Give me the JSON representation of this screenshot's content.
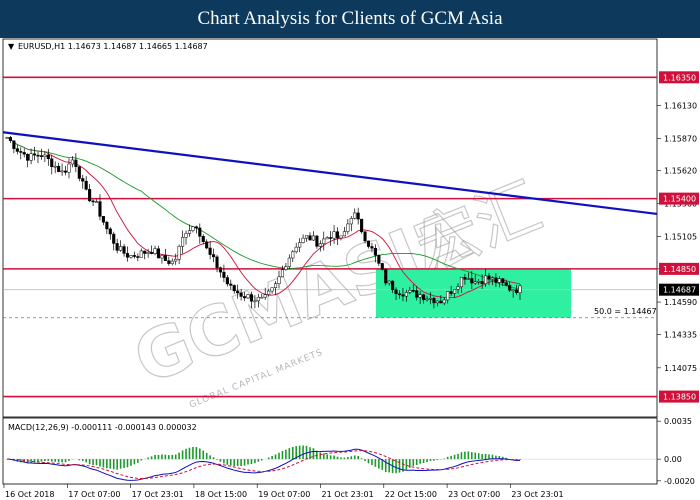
{
  "header": {
    "title": "Chart Analysis for Clients of GCM Asia"
  },
  "watermark": {
    "text": "GCMASIA",
    "cjk": "宏汇",
    "sub": "GLOBAL CAPITAL MARKETS"
  },
  "chart_data": {
    "type": "candlestick",
    "symbol_info": "EURUSD,H1  1.14673 1.14687 1.14665 1.14687",
    "price_range": [
      1.1369,
      1.1665
    ],
    "price_ticks": [
      "1.16130",
      "1.15870",
      "1.15620",
      "1.15360",
      "1.15105",
      "1.14850",
      "1.14590",
      "1.14335",
      "1.14075"
    ],
    "levels": [
      {
        "label": "1.16350",
        "value": 1.1635,
        "color": "#d0103a"
      },
      {
        "label": "1.15400",
        "value": 1.154,
        "color": "#d0103a"
      },
      {
        "label": "1.14850",
        "value": 1.1485,
        "color": "#d0103a"
      },
      {
        "label": "1.13850",
        "value": 1.1385,
        "color": "#d0103a"
      }
    ],
    "current_price": {
      "label": "1.14687",
      "value": 1.14687
    },
    "fib_label": "50.0 = 1.14467",
    "fib_value": 1.14467,
    "trendline": {
      "from": 1.1592,
      "to": 1.1528,
      "color": "#1010c0"
    },
    "zone": {
      "low": 1.14467,
      "high": 1.1485,
      "color": "#2ef0a0"
    },
    "x_labels": [
      "16 Oct 2018",
      "17 Oct 07:00",
      "17 Oct 23:01",
      "18 Oct 15:00",
      "19 Oct 07:00",
      "21 Oct 23:01",
      "22 Oct 15:00",
      "23 Oct 07:00",
      "23 Oct 23:01"
    ],
    "close_path": [
      1.1588,
      1.1578,
      1.1572,
      1.1575,
      1.1568,
      1.156,
      1.1572,
      1.1545,
      1.1535,
      1.1515,
      1.15,
      1.1495,
      1.1497,
      1.15,
      1.1492,
      1.149,
      1.1515,
      1.152,
      1.1498,
      1.1485,
      1.147,
      1.1465,
      1.1462,
      1.146,
      1.147,
      1.149,
      1.1505,
      1.151,
      1.1505,
      1.1512,
      1.1508,
      1.153,
      1.1512,
      1.1495,
      1.1475,
      1.1468,
      1.1466,
      1.1465,
      1.1462,
      1.146,
      1.147,
      1.148,
      1.1475,
      1.1478,
      1.1475,
      1.147,
      1.1469
    ],
    "macd": {
      "label": "MACD(12,26,9) -0.000111 -0.000143 0.000032",
      "ticks": [
        "0.0035",
        "0.00",
        "-0.0020"
      ],
      "range": [
        -0.0022,
        0.0037
      ],
      "signal_color": "#d0103a",
      "macd_color": "#1010c0",
      "hist_color": "#1a9a2a"
    }
  }
}
